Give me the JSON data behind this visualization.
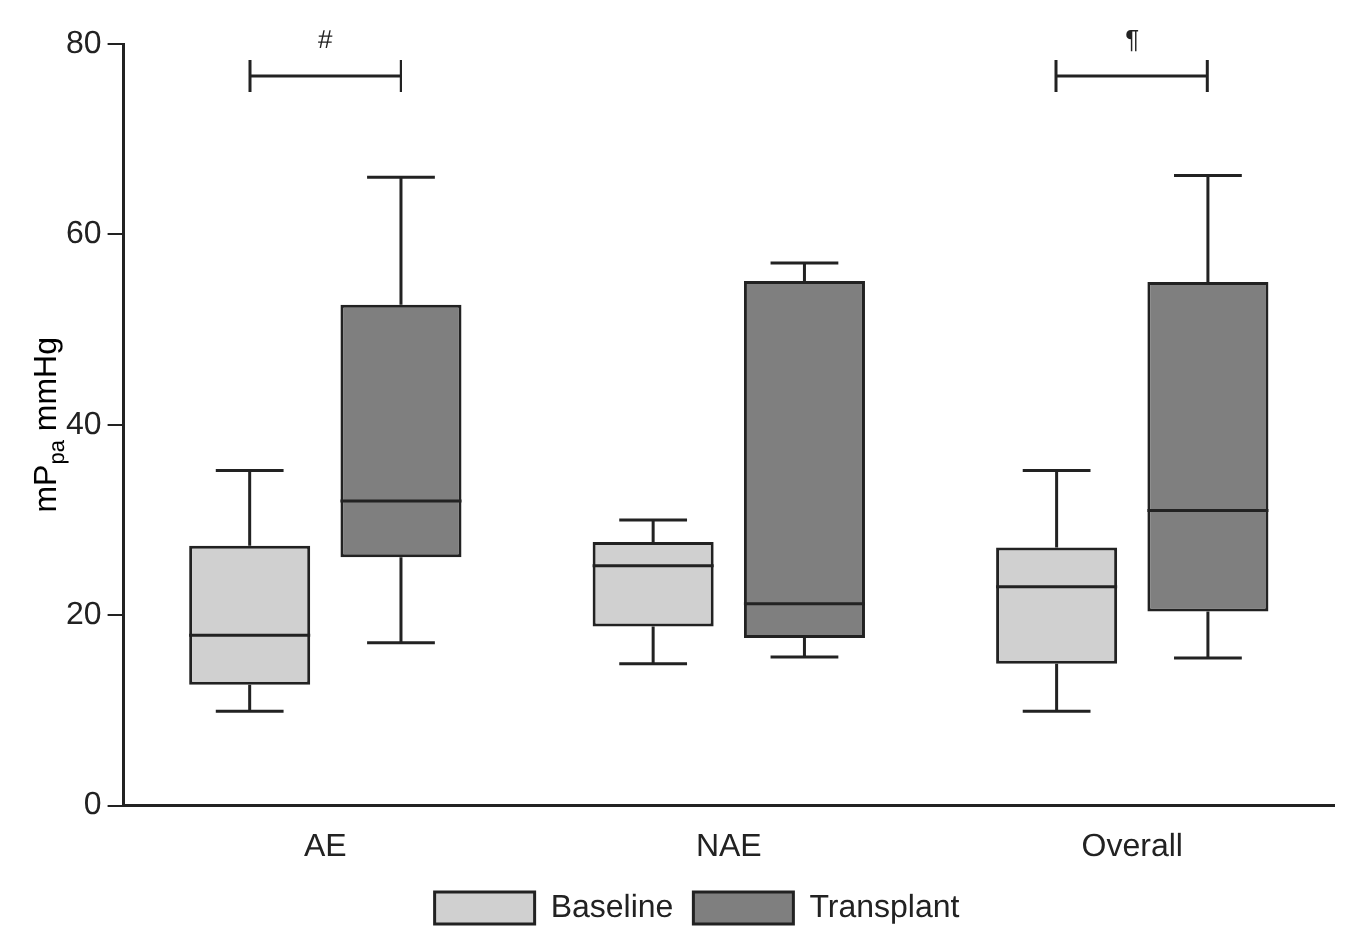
{
  "chart_data": {
    "type": "box",
    "ylabel": "mP$_{pa}$ mmHg",
    "categories": [
      "AE",
      "NAE",
      "Overall"
    ],
    "series": [
      {
        "name": "Baseline",
        "color": "#d0d0d0",
        "boxes": [
          {
            "low": 9.9,
            "q1": 12.7,
            "median": 17.9,
            "q3": 27.3,
            "high": 35.2
          },
          {
            "low": 14.9,
            "q1": 18.8,
            "median": 25.2,
            "q3": 27.7,
            "high": 30.0
          },
          {
            "low": 9.9,
            "q1": 14.9,
            "median": 23.0,
            "q3": 27.1,
            "high": 35.2
          }
        ]
      },
      {
        "name": "Transplant",
        "color": "#7f7f7f",
        "boxes": [
          {
            "low": 17.1,
            "q1": 26.1,
            "median": 32.0,
            "q3": 52.6,
            "high": 66.0
          },
          {
            "low": 15.6,
            "q1": 17.6,
            "median": 21.2,
            "q3": 55.1,
            "high": 57.0
          },
          {
            "low": 15.5,
            "q1": 20.4,
            "median": 31.0,
            "q3": 55.0,
            "high": 66.2
          }
        ]
      }
    ],
    "ylim": [
      0,
      80
    ],
    "yticks": [
      0,
      20,
      40,
      60,
      80
    ],
    "grid": false,
    "legend": "bottom",
    "annotations": [
      "#",
      "¶"
    ]
  }
}
